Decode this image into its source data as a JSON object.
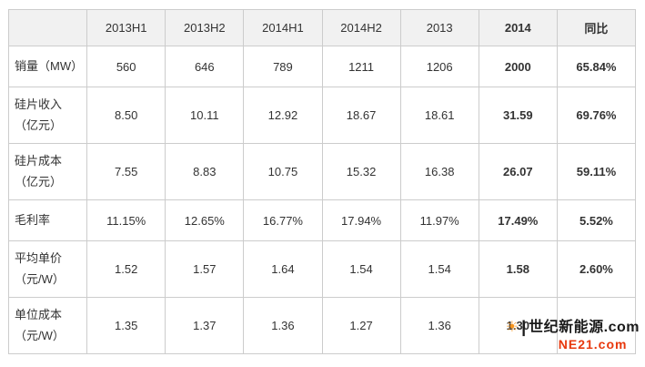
{
  "chart_data": {
    "type": "table",
    "title": "",
    "columns": [
      "",
      "2013H1",
      "2013H2",
      "2014H1",
      "2014H2",
      "2013",
      "2014",
      "同比"
    ],
    "bold_columns": [
      6,
      7
    ],
    "rows": [
      {
        "label": "销量（MW）",
        "values": [
          "560",
          "646",
          "789",
          "1211",
          "1206",
          "2000",
          "65.84%"
        ]
      },
      {
        "label": "硅片收入（亿元）",
        "values": [
          "8.50",
          "10.11",
          "12.92",
          "18.67",
          "18.61",
          "31.59",
          "69.76%"
        ]
      },
      {
        "label": "硅片成本（亿元）",
        "values": [
          "7.55",
          "8.83",
          "10.75",
          "15.32",
          "16.38",
          "26.07",
          "59.11%"
        ]
      },
      {
        "label": "毛利率",
        "values": [
          "11.15%",
          "12.65%",
          "16.77%",
          "17.94%",
          "11.97%",
          "17.49%",
          "5.52%"
        ]
      },
      {
        "label": "平均单价（元/W）",
        "values": [
          "1.52",
          "1.57",
          "1.64",
          "1.54",
          "1.54",
          "1.58",
          "2.60%"
        ]
      },
      {
        "label": "单位成本（元/W）",
        "values": [
          "1.35",
          "1.37",
          "1.36",
          "1.27",
          "1.36",
          "1.30",
          ""
        ]
      }
    ]
  },
  "watermark": {
    "separator": "|",
    "site_name": "世纪新能源.com",
    "site_domain": "NE21.com",
    "sun_icon_color": "#f7941d",
    "accent_color": "#e8380d"
  }
}
